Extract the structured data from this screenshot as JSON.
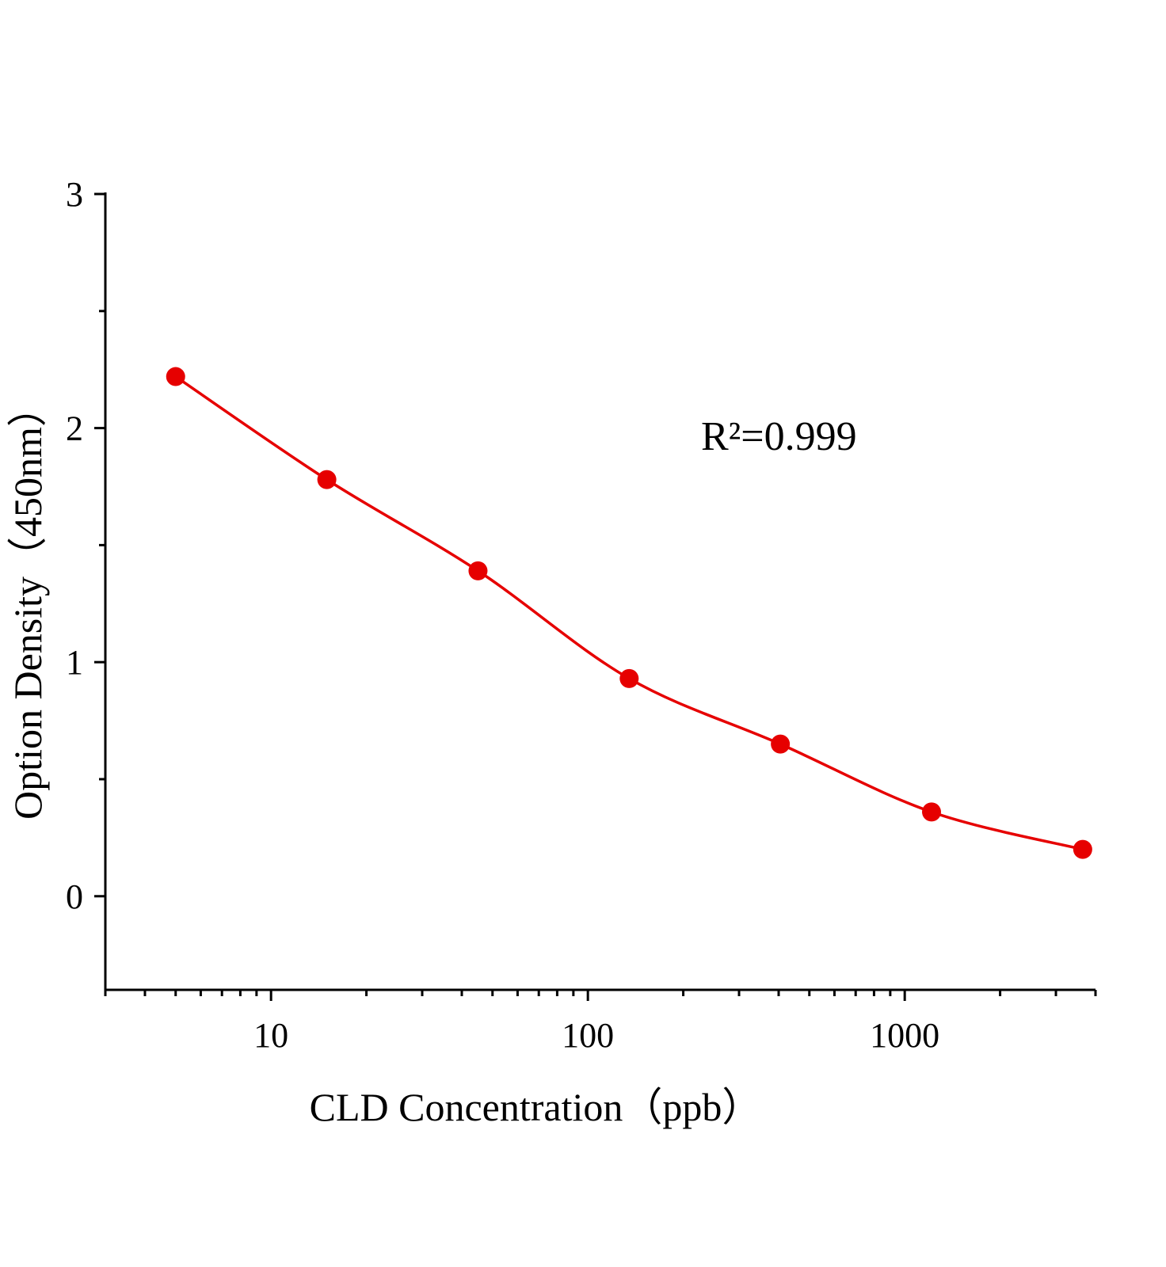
{
  "chart_data": {
    "type": "line",
    "x_label": "CLD  Concentration（ppb）",
    "y_label": "Option Density（450nm）",
    "annotation": "R²=0.999",
    "x": [
      5,
      15,
      45,
      135,
      405,
      1215,
      3645
    ],
    "series": [
      {
        "color": "#e60000",
        "values": [
          2.22,
          1.78,
          1.39,
          0.93,
          0.65,
          0.36,
          0.2
        ]
      }
    ],
    "xlim": [
      3,
      4000
    ],
    "xticks": [
      10,
      100,
      1000
    ],
    "xscale": "log",
    "ylim": [
      -0.4,
      3
    ],
    "yticks": [
      0,
      1,
      2,
      3
    ],
    "grid": false
  }
}
